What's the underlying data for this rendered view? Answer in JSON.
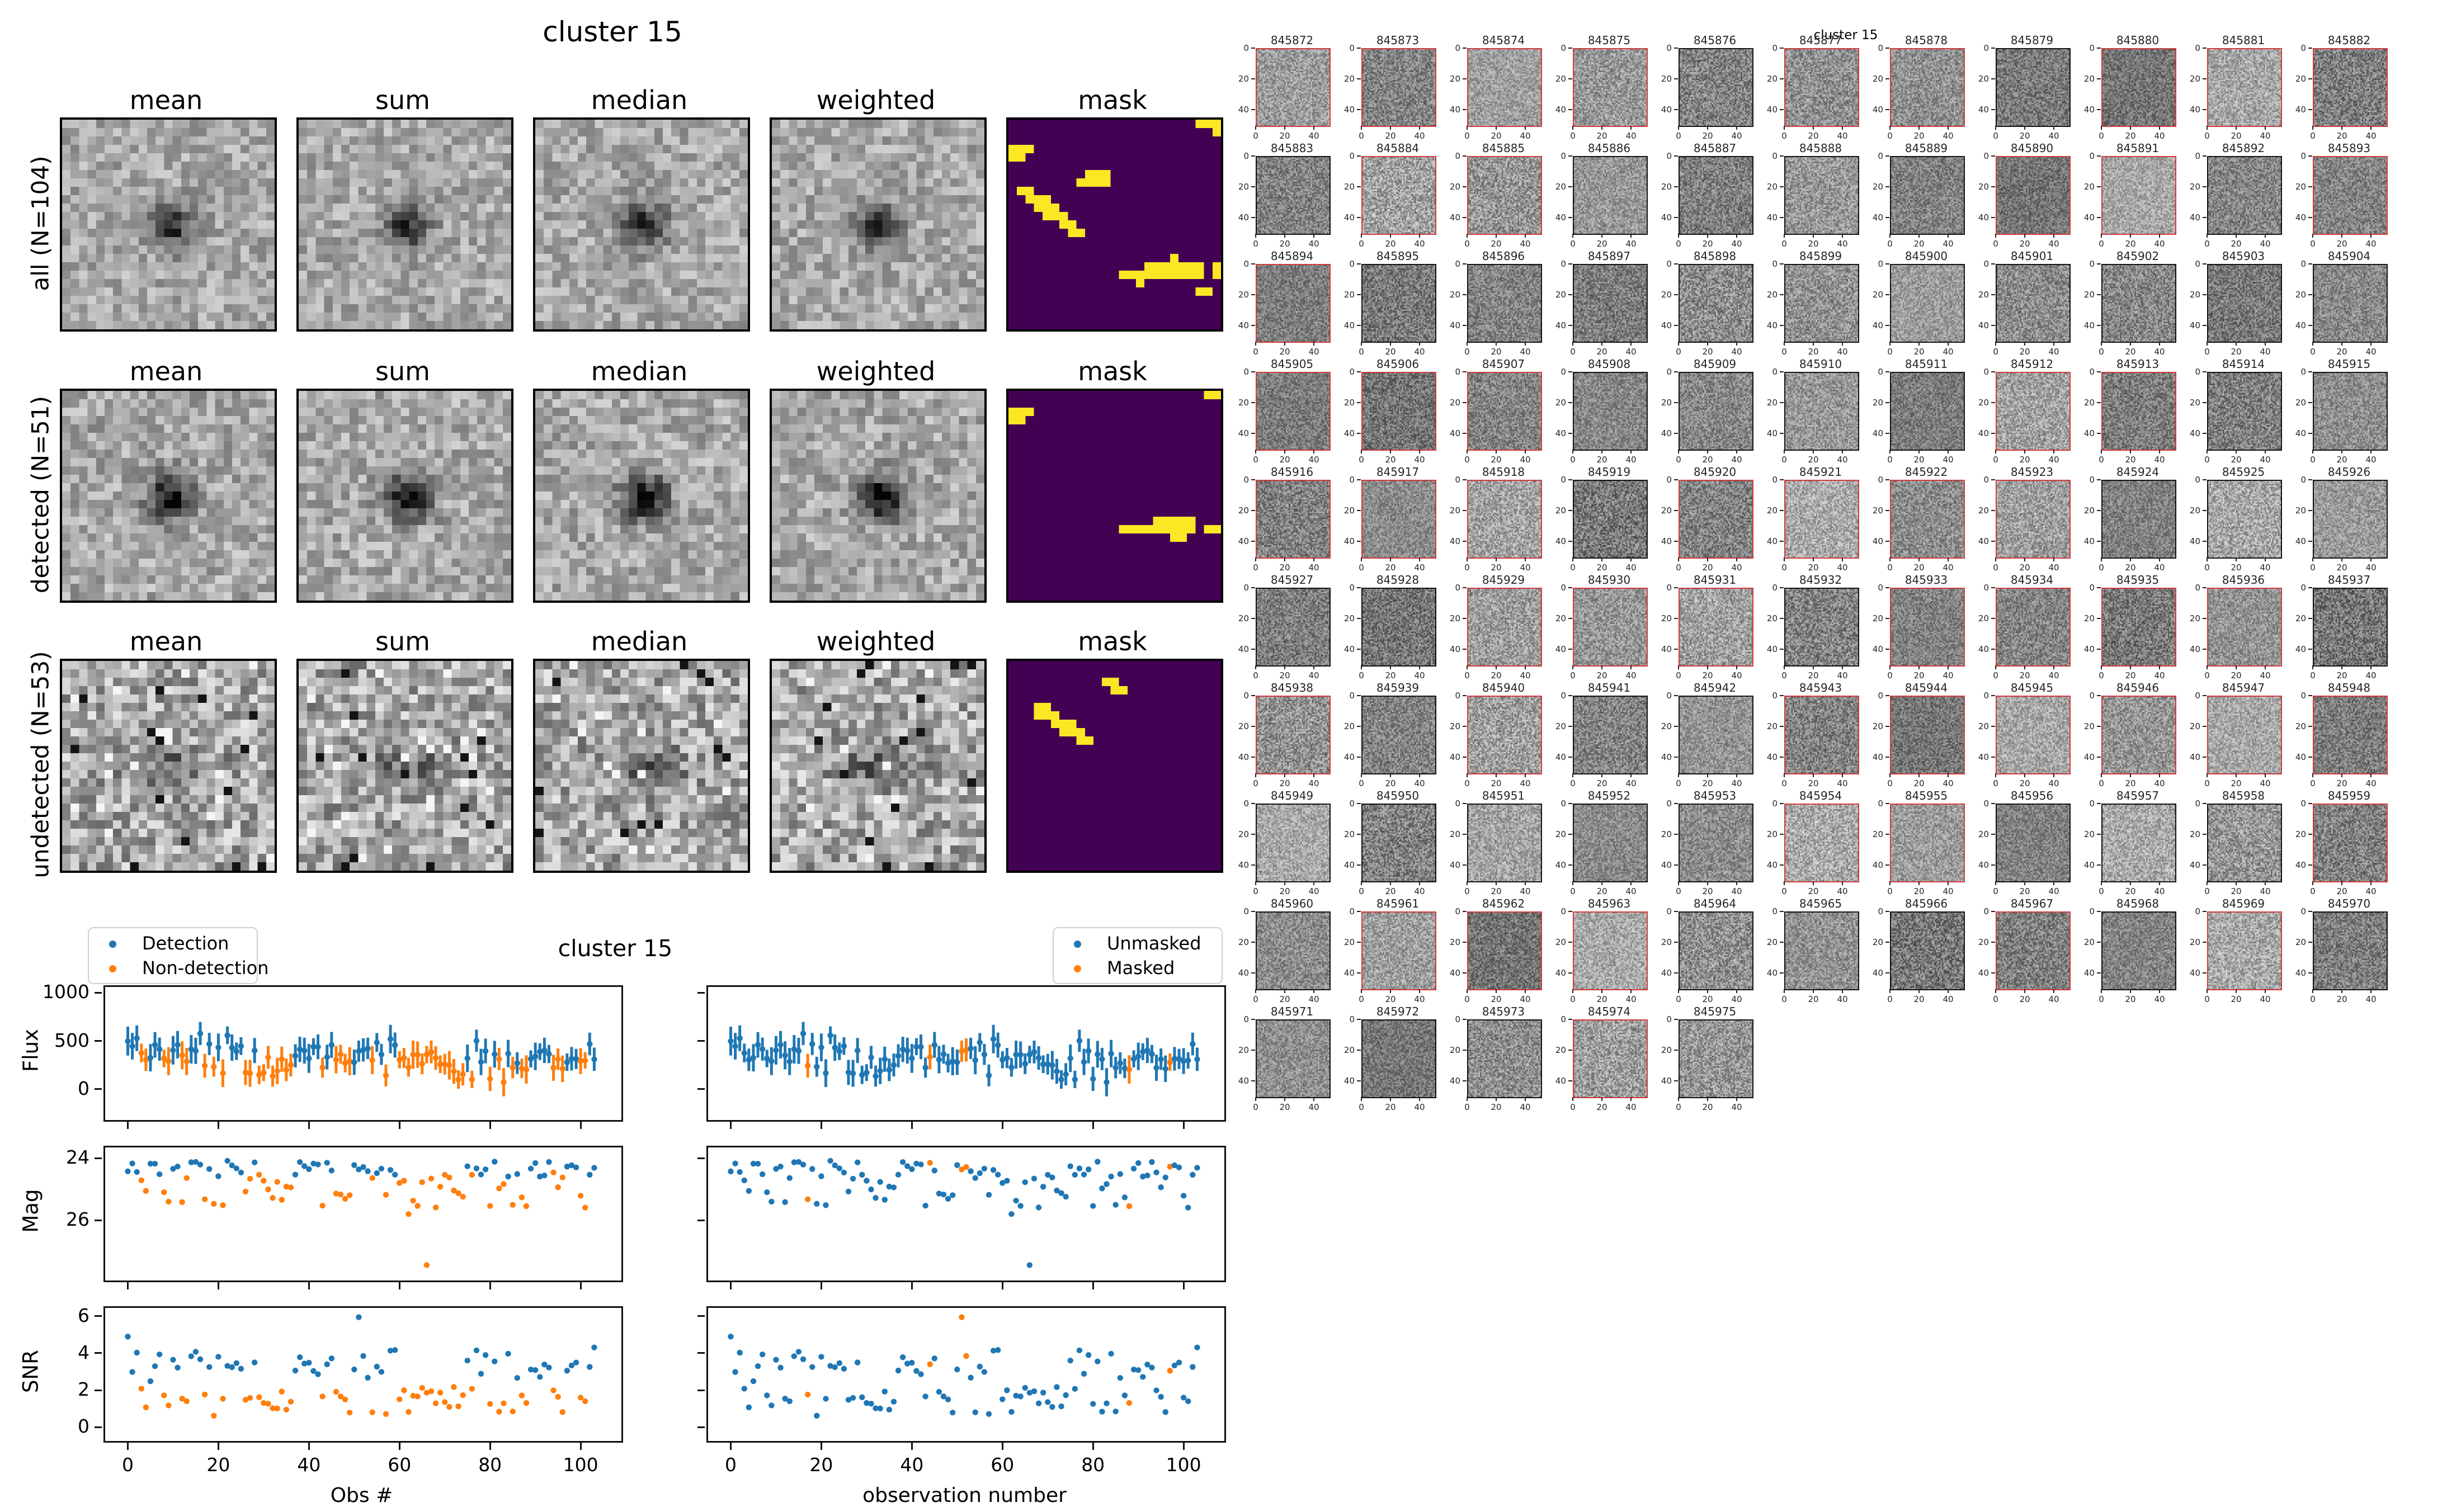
{
  "colors": {
    "blue": "#1f77b4",
    "orange": "#ff7f0e",
    "mask_bg": "#440154",
    "mask_fg": "#fde725",
    "red_border": "#d13b3b",
    "black_border": "#141414"
  },
  "left_figure": {
    "title": "cluster 15",
    "column_headers": [
      "mean",
      "sum",
      "median",
      "weighted",
      "mask"
    ],
    "rows": [
      {
        "label": "all (N=104)"
      },
      {
        "label": "detected (N=51)"
      },
      {
        "label": "undetected (N=53)"
      }
    ],
    "masks": [
      [
        [
          0,
          22,
          3
        ],
        [
          1,
          24,
          1
        ],
        [
          3,
          0,
          3
        ],
        [
          4,
          0,
          2
        ],
        [
          6,
          9,
          3
        ],
        [
          7,
          8,
          4
        ],
        [
          8,
          1,
          2
        ],
        [
          9,
          2,
          3
        ],
        [
          10,
          3,
          3
        ],
        [
          11,
          4,
          3
        ],
        [
          12,
          6,
          2
        ],
        [
          13,
          7,
          2
        ],
        [
          16,
          19,
          1
        ],
        [
          17,
          16,
          7
        ],
        [
          17,
          24,
          1
        ],
        [
          18,
          13,
          10
        ],
        [
          18,
          24,
          1
        ],
        [
          19,
          15,
          1
        ],
        [
          20,
          22,
          2
        ]
      ],
      [
        [
          0,
          23,
          2
        ],
        [
          2,
          0,
          3
        ],
        [
          3,
          0,
          2
        ],
        [
          15,
          17,
          5
        ],
        [
          16,
          13,
          9
        ],
        [
          16,
          23,
          2
        ],
        [
          17,
          19,
          2
        ]
      ],
      [
        [
          2,
          11,
          2
        ],
        [
          3,
          12,
          2
        ],
        [
          5,
          3,
          2
        ],
        [
          6,
          3,
          3
        ],
        [
          7,
          5,
          3
        ],
        [
          8,
          6,
          3
        ],
        [
          9,
          8,
          2
        ]
      ]
    ]
  },
  "right_grid": {
    "title": "cluster 15",
    "axis_ticks": [
      "0",
      "20",
      "40"
    ],
    "stamps": [
      {
        "id": "845872",
        "red": true
      },
      {
        "id": "845873",
        "red": true
      },
      {
        "id": "845874",
        "red": true
      },
      {
        "id": "845875",
        "red": true
      },
      {
        "id": "845876",
        "red": false
      },
      {
        "id": "845877",
        "red": true
      },
      {
        "id": "845878",
        "red": true
      },
      {
        "id": "845879",
        "red": false
      },
      {
        "id": "845880",
        "red": true
      },
      {
        "id": "845881",
        "red": true
      },
      {
        "id": "845882",
        "red": true
      },
      {
        "id": "845883",
        "red": false
      },
      {
        "id": "845884",
        "red": true
      },
      {
        "id": "845885",
        "red": true
      },
      {
        "id": "845886",
        "red": false
      },
      {
        "id": "845887",
        "red": false
      },
      {
        "id": "845888",
        "red": false
      },
      {
        "id": "845889",
        "red": false
      },
      {
        "id": "845890",
        "red": true
      },
      {
        "id": "845891",
        "red": true
      },
      {
        "id": "845892",
        "red": false
      },
      {
        "id": "845893",
        "red": true
      },
      {
        "id": "845894",
        "red": true
      },
      {
        "id": "845895",
        "red": false
      },
      {
        "id": "845896",
        "red": false
      },
      {
        "id": "845897",
        "red": false
      },
      {
        "id": "845898",
        "red": false
      },
      {
        "id": "845899",
        "red": false
      },
      {
        "id": "845900",
        "red": false
      },
      {
        "id": "845901",
        "red": false
      },
      {
        "id": "845902",
        "red": false
      },
      {
        "id": "845903",
        "red": false
      },
      {
        "id": "845904",
        "red": false
      },
      {
        "id": "845905",
        "red": true
      },
      {
        "id": "845906",
        "red": true
      },
      {
        "id": "845907",
        "red": true
      },
      {
        "id": "845908",
        "red": false
      },
      {
        "id": "845909",
        "red": false
      },
      {
        "id": "845910",
        "red": false
      },
      {
        "id": "845911",
        "red": false
      },
      {
        "id": "845912",
        "red": true
      },
      {
        "id": "845913",
        "red": true
      },
      {
        "id": "845914",
        "red": false
      },
      {
        "id": "845915",
        "red": false
      },
      {
        "id": "845916",
        "red": true
      },
      {
        "id": "845917",
        "red": true
      },
      {
        "id": "845918",
        "red": true
      },
      {
        "id": "845919",
        "red": false
      },
      {
        "id": "845920",
        "red": true
      },
      {
        "id": "845921",
        "red": true
      },
      {
        "id": "845922",
        "red": true
      },
      {
        "id": "845923",
        "red": true
      },
      {
        "id": "845924",
        "red": false
      },
      {
        "id": "845925",
        "red": false
      },
      {
        "id": "845926",
        "red": false
      },
      {
        "id": "845927",
        "red": false
      },
      {
        "id": "845928",
        "red": false
      },
      {
        "id": "845929",
        "red": true
      },
      {
        "id": "845930",
        "red": true
      },
      {
        "id": "845931",
        "red": true
      },
      {
        "id": "845932",
        "red": false
      },
      {
        "id": "845933",
        "red": true
      },
      {
        "id": "845934",
        "red": true
      },
      {
        "id": "845935",
        "red": true
      },
      {
        "id": "845936",
        "red": true
      },
      {
        "id": "845937",
        "red": false
      },
      {
        "id": "845938",
        "red": true
      },
      {
        "id": "845939",
        "red": false
      },
      {
        "id": "845940",
        "red": true
      },
      {
        "id": "845941",
        "red": false
      },
      {
        "id": "845942",
        "red": false
      },
      {
        "id": "845943",
        "red": true
      },
      {
        "id": "845944",
        "red": true
      },
      {
        "id": "845945",
        "red": true
      },
      {
        "id": "845946",
        "red": true
      },
      {
        "id": "845947",
        "red": true
      },
      {
        "id": "845948",
        "red": true
      },
      {
        "id": "845949",
        "red": false
      },
      {
        "id": "845950",
        "red": false
      },
      {
        "id": "845951",
        "red": false
      },
      {
        "id": "845952",
        "red": false
      },
      {
        "id": "845953",
        "red": false
      },
      {
        "id": "845954",
        "red": true
      },
      {
        "id": "845955",
        "red": true
      },
      {
        "id": "845956",
        "red": false
      },
      {
        "id": "845957",
        "red": false
      },
      {
        "id": "845958",
        "red": false
      },
      {
        "id": "845959",
        "red": true
      },
      {
        "id": "845960",
        "red": false
      },
      {
        "id": "845961",
        "red": true
      },
      {
        "id": "845962",
        "red": true
      },
      {
        "id": "845963",
        "red": true
      },
      {
        "id": "845964",
        "red": false
      },
      {
        "id": "845965",
        "red": false
      },
      {
        "id": "845966",
        "red": false
      },
      {
        "id": "845967",
        "red": true
      },
      {
        "id": "845968",
        "red": false
      },
      {
        "id": "845969",
        "red": true
      },
      {
        "id": "845970",
        "red": false
      },
      {
        "id": "845971",
        "red": false
      },
      {
        "id": "845972",
        "red": false
      },
      {
        "id": "845973",
        "red": false
      },
      {
        "id": "845974",
        "red": true
      },
      {
        "id": "845975",
        "red": false
      }
    ]
  },
  "bottom_figure": {
    "title": "cluster 15",
    "legends": {
      "left": [
        {
          "label": "Detection",
          "color": "#1f77b4"
        },
        {
          "label": "Non-detection",
          "color": "#ff7f0e"
        }
      ],
      "right": [
        {
          "label": "Unmasked",
          "color": "#1f77b4"
        },
        {
          "label": "Masked",
          "color": "#ff7f0e"
        }
      ]
    },
    "xlabels": {
      "left": "Obs #",
      "right": "observation number"
    },
    "ylabels": [
      "Flux",
      "Mag",
      "SNR"
    ]
  },
  "chart_data": [
    {
      "id": "flux_left",
      "type": "scatter",
      "marker": "errorbar",
      "ylabel": "Flux",
      "xlim": [
        -5,
        109
      ],
      "ylim": [
        -320,
        1060
      ],
      "inverted": false,
      "xticks": [
        0,
        20,
        40,
        60,
        80,
        100
      ],
      "yticks": [
        1000,
        500,
        0
      ],
      "series": [
        {
          "name": "Detection",
          "color": "#1f77b4",
          "n": 51,
          "y_range": [
            280,
            640
          ],
          "yerr_range": [
            80,
            150
          ]
        },
        {
          "name": "Non-detection",
          "color": "#ff7f0e",
          "n": 53,
          "y_range": [
            20,
            470
          ],
          "yerr_range": [
            80,
            150
          ]
        }
      ]
    },
    {
      "id": "mag_left",
      "type": "scatter",
      "marker": "dot",
      "ylabel": "Mag",
      "xlim": [
        -5,
        109
      ],
      "ylim": [
        23.65,
        27.95
      ],
      "inverted": true,
      "xticks": [
        0,
        20,
        40,
        60,
        80,
        100
      ],
      "yticks": [
        24,
        26
      ],
      "series": [
        {
          "name": "Detection",
          "color": "#1f77b4",
          "n": 51,
          "y_range": [
            24.05,
            24.65
          ]
        },
        {
          "name": "Non-detection",
          "color": "#ff7f0e",
          "n": 53,
          "y_range": [
            24.45,
            27.45
          ]
        }
      ]
    },
    {
      "id": "snr_left",
      "type": "scatter",
      "marker": "dot",
      "ylabel": "SNR",
      "xlabel": "Obs #",
      "xlim": [
        -5,
        109
      ],
      "ylim": [
        -0.75,
        6.45
      ],
      "inverted": false,
      "xticks": [
        0,
        20,
        40,
        60,
        80,
        100
      ],
      "yticks": [
        6,
        4,
        2,
        0
      ],
      "series": [
        {
          "name": "Detection",
          "color": "#1f77b4",
          "n": 51,
          "y_range": [
            2.2,
            5.95
          ]
        },
        {
          "name": "Non-detection",
          "color": "#ff7f0e",
          "n": 53,
          "y_range": [
            0.2,
            2.5
          ]
        }
      ]
    },
    {
      "id": "flux_right",
      "type": "scatter",
      "marker": "errorbar",
      "xlim": [
        -5,
        109
      ],
      "ylim": [
        -320,
        1060
      ],
      "inverted": false,
      "xticks": [
        0,
        20,
        40,
        60,
        80,
        100
      ],
      "yticks": [
        1000,
        500,
        0
      ],
      "series": [
        {
          "name": "Unmasked",
          "color": "#1f77b4",
          "n": 98,
          "y_range": [
            20,
            640
          ],
          "yerr_range": [
            80,
            150
          ]
        },
        {
          "name": "Masked",
          "color": "#ff7f0e",
          "n": 6,
          "y_range": [
            150,
            620
          ],
          "yerr_range": [
            80,
            150
          ]
        }
      ]
    },
    {
      "id": "mag_right",
      "type": "scatter",
      "marker": "dot",
      "xlim": [
        -5,
        109
      ],
      "ylim": [
        23.65,
        27.95
      ],
      "inverted": true,
      "xticks": [
        0,
        20,
        40,
        60,
        80,
        100
      ],
      "yticks": [
        24,
        26
      ],
      "series": [
        {
          "name": "Unmasked",
          "color": "#1f77b4",
          "n": 98,
          "y_range": [
            24.05,
            27.45
          ]
        },
        {
          "name": "Masked",
          "color": "#ff7f0e",
          "n": 6,
          "y_range": [
            24.1,
            25.9
          ]
        }
      ]
    },
    {
      "id": "snr_right",
      "type": "scatter",
      "marker": "dot",
      "xlabel": "observation number",
      "xlim": [
        -5,
        109
      ],
      "ylim": [
        -0.75,
        6.45
      ],
      "inverted": false,
      "xticks": [
        0,
        20,
        40,
        60,
        80,
        100
      ],
      "yticks": [
        6,
        4,
        2,
        0
      ],
      "series": [
        {
          "name": "Unmasked",
          "color": "#1f77b4",
          "n": 98,
          "y_range": [
            0.2,
            4.9
          ]
        },
        {
          "name": "Masked",
          "color": "#ff7f0e",
          "n": 6,
          "y_range": [
            0.5,
            5.95
          ]
        }
      ]
    }
  ],
  "generation": {
    "seed": 7,
    "n_obs": 104,
    "n_detected": 51,
    "n_undetected": 53,
    "masked_obs": [
      17,
      44,
      51,
      52,
      88,
      97
    ],
    "high_snr_obs": 51,
    "high_snr_value": 5.95,
    "first_snr_value": 4.9,
    "low_mag_obs": 66,
    "low_mag_value": 27.45
  }
}
